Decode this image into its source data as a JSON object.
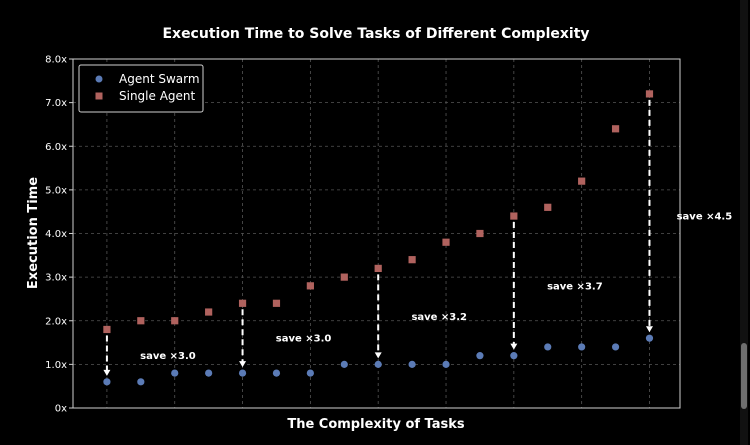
{
  "chart_data": {
    "type": "scatter",
    "title": "Execution Time to Solve Tasks of Different Complexity",
    "xlabel": "The Complexity of Tasks",
    "ylabel": "Execution Time",
    "xlim": [
      0,
      17.9
    ],
    "ylim": [
      0,
      8
    ],
    "yticks": [
      0,
      1,
      2,
      3,
      4,
      5,
      6,
      7,
      8
    ],
    "ytick_labels": [
      "0x",
      "1.0x",
      "2.0x",
      "3.0x",
      "4.0x",
      "5.0x",
      "6.0x",
      "7.0x",
      "8.0x"
    ],
    "x_grid": [
      1,
      3,
      5,
      7,
      9,
      11,
      13,
      15,
      17
    ],
    "grid": true,
    "legend_position": "top-left",
    "series": [
      {
        "name": "Agent Swarm",
        "marker": "circle",
        "color": "#5b7bb6",
        "x": [
          1,
          2,
          3,
          4,
          5,
          6,
          7,
          8,
          9,
          10,
          11,
          12,
          13,
          14,
          15,
          16,
          17
        ],
        "values": [
          0.6,
          0.6,
          0.8,
          0.8,
          0.8,
          0.8,
          0.8,
          1.0,
          1.0,
          1.0,
          1.0,
          1.2,
          1.2,
          1.4,
          1.4,
          1.4,
          1.6
        ]
      },
      {
        "name": "Single Agent",
        "marker": "square",
        "color": "#b0625e",
        "x": [
          1,
          2,
          3,
          4,
          5,
          6,
          7,
          8,
          9,
          10,
          11,
          12,
          13,
          14,
          15,
          16,
          17
        ],
        "values": [
          1.8,
          2.0,
          2.0,
          2.2,
          2.4,
          2.4,
          2.8,
          3.0,
          3.2,
          3.4,
          3.8,
          4.0,
          4.4,
          4.6,
          5.2,
          6.4,
          7.2
        ]
      }
    ],
    "annotations": [
      {
        "text": "save ×3.0",
        "x": 1,
        "from": 1.8,
        "to": 0.6,
        "label_x": 2.8,
        "label_y": 1.2,
        "align": "middle"
      },
      {
        "text": "save ×3.0",
        "x": 5,
        "from": 2.4,
        "to": 0.8,
        "label_x": 6.8,
        "label_y": 1.6,
        "align": "middle"
      },
      {
        "text": "save ×3.2",
        "x": 9,
        "from": 3.2,
        "to": 1.0,
        "label_x": 10.8,
        "label_y": 2.1,
        "align": "middle"
      },
      {
        "text": "save ×3.7",
        "x": 13,
        "from": 4.4,
        "to": 1.2,
        "label_x": 14.8,
        "label_y": 2.8,
        "align": "middle"
      },
      {
        "text": "save ×4.5",
        "x": 17,
        "from": 7.2,
        "to": 1.6,
        "label_x": 17.8,
        "label_y": 4.4,
        "align": "start"
      }
    ]
  },
  "colors": {
    "background": "#000000",
    "grid": "#555555",
    "axes": "#d0d0d0"
  }
}
